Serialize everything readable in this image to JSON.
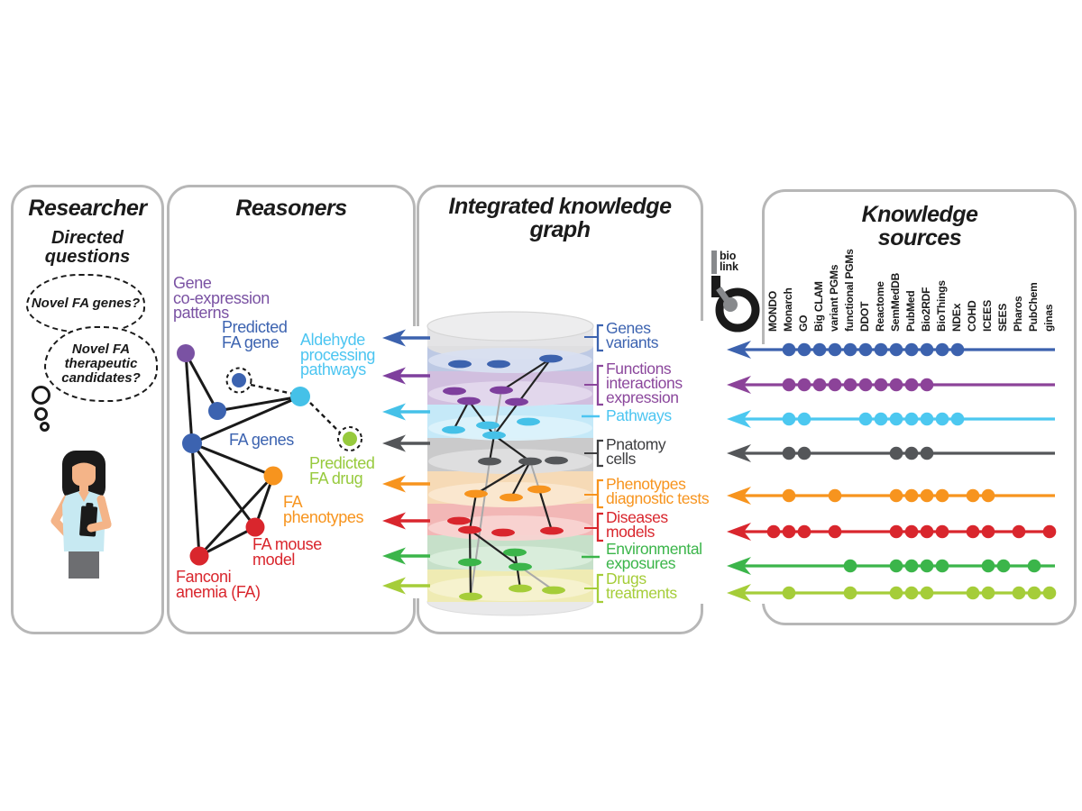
{
  "figure": {
    "researcher": {
      "title": "Researcher",
      "subtitle": "Directed questions",
      "thought_bubble_1": "Novel FA genes?",
      "thought_bubble_2": "Novel FA therapeutic candidates?"
    },
    "reasoners": {
      "title": "Reasoners",
      "labels": [
        {
          "id": "coexpression",
          "lines": [
            "Gene",
            "co-expression",
            "patterns"
          ],
          "color": "#7a52a3"
        },
        {
          "id": "predicted_gene",
          "lines": [
            "Predicted",
            "FA gene"
          ],
          "color": "#3c63b0"
        },
        {
          "id": "aldehyde",
          "lines": [
            "Aldehyde",
            "processing",
            "pathways"
          ],
          "color": "#4cc5f1"
        },
        {
          "id": "fa_genes",
          "lines": [
            "FA genes"
          ],
          "color": "#3c63b0"
        },
        {
          "id": "predicted_drug",
          "lines": [
            "Predicted",
            "FA drug"
          ],
          "color": "#97ca3d"
        },
        {
          "id": "fa_phenotypes",
          "lines": [
            "FA",
            "phenotypes"
          ],
          "color": "#f7941e"
        },
        {
          "id": "fa_mouse",
          "lines": [
            "FA mouse",
            "model"
          ],
          "color": "#d9262d"
        },
        {
          "id": "fanconi",
          "lines": [
            "Fanconi",
            "anemia (FA)"
          ],
          "color": "#d9262d"
        }
      ]
    },
    "integrated_graph": {
      "title": "Integrated knowledge graph",
      "layers": [
        {
          "id": "genes",
          "lines": [
            "Genes",
            "variants"
          ],
          "color": "#3c63b0",
          "band": "#bdc9e4",
          "rim": "#d8dff0",
          "dot": "#3c62ae",
          "connector": "bracket"
        },
        {
          "id": "functions",
          "lines": [
            "Functions",
            "interactions",
            "expression"
          ],
          "color": "#8b479c",
          "band": "#d1bfdf",
          "rim": "#e3d8ec",
          "dot": "#7e3f9d",
          "connector": "bracket"
        },
        {
          "id": "pathways",
          "lines": [
            "Pathways"
          ],
          "color": "#4cc5f1",
          "band": "#c5e9f8",
          "rim": "#dcf2fb",
          "dot": "#45c1e8",
          "connector": "dash"
        },
        {
          "id": "anatomy",
          "lines": [
            "Pnatomy",
            "cells"
          ],
          "color": "#3f3f41",
          "band": "#cacacb",
          "rim": "#dededf",
          "dot": "#545659",
          "connector": "bracket"
        },
        {
          "id": "phenotypes",
          "lines": [
            "Phenotypes",
            "diagnostic tests"
          ],
          "color": "#f7941e",
          "band": "#f6dab6",
          "rim": "#fae8d1",
          "dot": "#f7941e",
          "connector": "bracket"
        },
        {
          "id": "diseases",
          "lines": [
            "Diseases",
            "models"
          ],
          "color": "#d9262d",
          "band": "#f2b7b6",
          "rim": "#f8d3d2",
          "dot": "#d9262d",
          "connector": "bracket"
        },
        {
          "id": "environment",
          "lines": [
            "Environmental",
            "exposures"
          ],
          "color": "#3bb54a",
          "band": "#c6e0c9",
          "rim": "#daeddc",
          "dot": "#3bb54a",
          "connector": "dash"
        },
        {
          "id": "drugs",
          "lines": [
            "Drugs",
            "treatments"
          ],
          "color": "#a5cd39",
          "band": "#efebb3",
          "rim": "#f6f2d0",
          "dot": "#a5cd39",
          "connector": "bracket"
        }
      ]
    },
    "knowledge_sources": {
      "title": "Knowledge sources",
      "logo": {
        "line1": "bio",
        "line2": "link"
      },
      "columns": [
        "MONDO",
        "Monarch",
        "GO",
        "Big CLAM",
        "variant PGMs",
        "functional PGMs",
        "DDOT",
        "Reactome",
        "SemMedDB",
        "PubMed",
        "Bio2RDF",
        "BioThings",
        "NDEx",
        "COHD",
        "ICEES",
        "SEES",
        "Pharos",
        "PubChem",
        "ginas"
      ],
      "rows": [
        {
          "name": "genes-variants",
          "color": "#3c62ae",
          "sources": [
            "Monarch",
            "GO",
            "Big CLAM",
            "variant PGMs",
            "functional PGMs",
            "DDOT",
            "Reactome",
            "SemMedDB",
            "PubMed",
            "Bio2RDF",
            "BioThings",
            "NDEx"
          ]
        },
        {
          "name": "functions-interactions-expression",
          "color": "#8c4399",
          "sources": [
            "Monarch",
            "GO",
            "Big CLAM",
            "variant PGMs",
            "functional PGMs",
            "DDOT",
            "Reactome",
            "SemMedDB",
            "PubMed",
            "Bio2RDF"
          ]
        },
        {
          "name": "pathways",
          "color": "#4cc8f0",
          "sources": [
            "Monarch",
            "GO",
            "DDOT",
            "Reactome",
            "SemMedDB",
            "PubMed",
            "Bio2RDF",
            "BioThings",
            "NDEx"
          ]
        },
        {
          "name": "anatomy-cells",
          "color": "#545659",
          "sources": [
            "Monarch",
            "GO",
            "SemMedDB",
            "PubMed",
            "Bio2RDF"
          ]
        },
        {
          "name": "phenotypes-diagnostic-tests",
          "color": "#f7941e",
          "sources": [
            "Monarch",
            "variant PGMs",
            "SemMedDB",
            "PubMed",
            "Bio2RDF",
            "BioThings",
            "COHD",
            "ICEES"
          ]
        },
        {
          "name": "diseases-models",
          "color": "#d9262d",
          "sources": [
            "MONDO",
            "Monarch",
            "GO",
            "variant PGMs",
            "SemMedDB",
            "PubMed",
            "Bio2RDF",
            "BioThings",
            "COHD",
            "ICEES",
            "Pharos",
            "ginas"
          ]
        },
        {
          "name": "environmental-exposures",
          "color": "#3bb54a",
          "sources": [
            "functional PGMs",
            "SemMedDB",
            "PubMed",
            "Bio2RDF",
            "BioThings",
            "ICEES",
            "SEES",
            "PubChem"
          ]
        },
        {
          "name": "drugs-treatments",
          "color": "#a5cd39",
          "sources": [
            "Monarch",
            "functional PGMs",
            "SemMedDB",
            "PubMed",
            "Bio2RDF",
            "COHD",
            "ICEES",
            "Pharos",
            "PubChem",
            "ginas"
          ]
        }
      ]
    }
  }
}
